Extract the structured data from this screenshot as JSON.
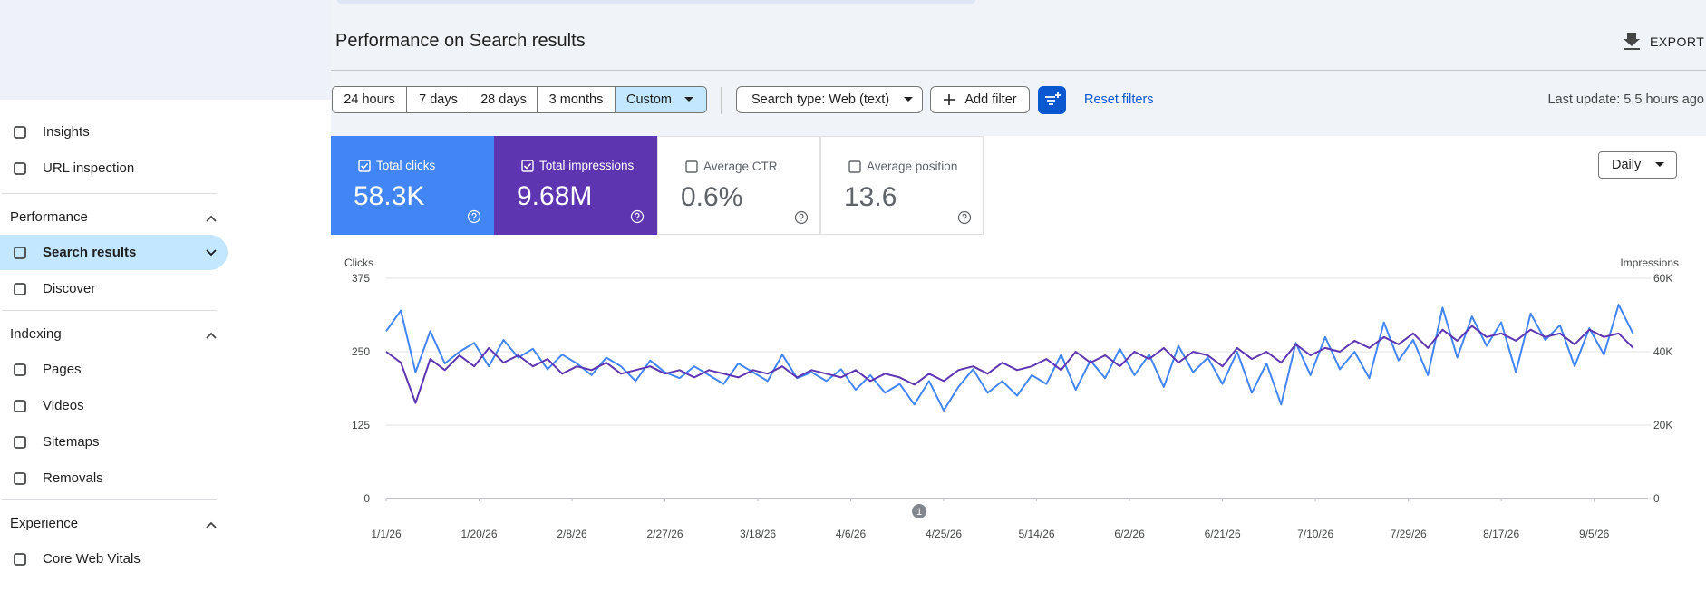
{
  "sidebar": {
    "top_items": [
      "Insights",
      "URL inspection"
    ],
    "sections": [
      {
        "title": "Performance",
        "items": [
          "Search results",
          "Discover"
        ]
      },
      {
        "title": "Indexing",
        "items": [
          "Pages",
          "Videos",
          "Sitemaps",
          "Removals"
        ]
      },
      {
        "title": "Experience",
        "items": [
          "Core Web Vitals"
        ]
      }
    ]
  },
  "header": {
    "title": "Performance on Search results",
    "export": "EXPORT"
  },
  "filters": {
    "date_ranges": [
      "24 hours",
      "7 days",
      "28 days",
      "3 months",
      "Custom"
    ],
    "search_type": "Search type: Web (text)",
    "add_filter": "Add filter",
    "reset": "Reset filters",
    "last_update": "Last update: 5.5 hours ago"
  },
  "metrics": [
    {
      "label": "Total clicks",
      "value": "58.3K",
      "checked": true,
      "color": "#4285f4"
    },
    {
      "label": "Total impressions",
      "value": "9.68M",
      "checked": true,
      "color": "#5e35b1"
    },
    {
      "label": "Average CTR",
      "value": "0.6%",
      "checked": false,
      "color": "#ffffff"
    },
    {
      "label": "Average position",
      "value": "13.6",
      "checked": false,
      "color": "#ffffff"
    }
  ],
  "granularity": "Daily",
  "chart_data": {
    "type": "line",
    "y_label": "Clicks",
    "y2_label": "Impressions",
    "x": [
      0,
      3,
      6,
      9,
      12,
      15,
      18,
      21,
      24,
      27,
      30,
      33,
      36,
      39,
      42,
      45,
      48,
      51,
      54,
      57,
      60,
      63,
      66,
      69,
      72,
      75,
      78,
      81,
      84,
      87,
      90,
      93,
      96,
      99,
      102,
      105,
      108,
      111,
      114,
      117,
      120,
      123,
      126,
      129,
      132,
      135,
      138,
      141,
      144,
      147,
      150,
      153,
      156,
      159,
      162,
      165,
      168,
      171,
      174,
      177,
      180,
      183,
      186,
      189,
      192,
      195,
      198,
      201,
      204,
      207,
      210,
      213,
      216,
      219,
      222,
      225,
      228,
      231,
      234,
      237,
      240,
      243,
      246,
      249,
      252,
      255
    ],
    "xlim": [
      0,
      258
    ],
    "xticks": [
      {
        "value": 0,
        "label": "1/1/26"
      },
      {
        "value": 19,
        "label": "1/20/26"
      },
      {
        "value": 38,
        "label": "2/8/26"
      },
      {
        "value": 57,
        "label": "2/27/26"
      },
      {
        "value": 76,
        "label": "3/18/26"
      },
      {
        "value": 95,
        "label": "4/6/26"
      },
      {
        "value": 114,
        "label": "4/25/26"
      },
      {
        "value": 133,
        "label": "5/14/26"
      },
      {
        "value": 152,
        "label": "6/2/26"
      },
      {
        "value": 171,
        "label": "6/21/26"
      },
      {
        "value": 190,
        "label": "7/10/26"
      },
      {
        "value": 209,
        "label": "7/29/26"
      },
      {
        "value": 228,
        "label": "8/17/26"
      },
      {
        "value": 247,
        "label": "9/5/26"
      }
    ],
    "ylim": [
      0,
      375
    ],
    "yticks": [
      0,
      125,
      250,
      375
    ],
    "y2lim": [
      0,
      60000
    ],
    "y2ticks": [
      0,
      {
        "value": 20000,
        "label": "20K"
      },
      {
        "value": 40000,
        "label": "40K"
      },
      {
        "value": 60000,
        "label": "60K"
      }
    ],
    "grid": true,
    "series": [
      {
        "name": "Clicks",
        "color": "#4285f4",
        "values": [
          285,
          320,
          215,
          285,
          230,
          250,
          265,
          225,
          270,
          240,
          255,
          220,
          245,
          230,
          210,
          240,
          225,
          200,
          235,
          215,
          205,
          225,
          210,
          195,
          230,
          215,
          200,
          245,
          205,
          215,
          200,
          220,
          185,
          210,
          180,
          195,
          160,
          200,
          150,
          190,
          220,
          180,
          200,
          175,
          210,
          195,
          245,
          185,
          235,
          205,
          255,
          210,
          245,
          190,
          260,
          215,
          240,
          195,
          250,
          180,
          230,
          160,
          265,
          210,
          275,
          220,
          250,
          205,
          300,
          235,
          270,
          210,
          325,
          240,
          310,
          260,
          300,
          215,
          315,
          270,
          295,
          225,
          290,
          245,
          330,
          280
        ]
      },
      {
        "name": "Impressions",
        "color": "#5e35b1",
        "axis": "y2",
        "values": [
          40000,
          37000,
          26000,
          38000,
          35000,
          39000,
          36000,
          41000,
          37000,
          39000,
          36000,
          38000,
          34000,
          36000,
          35000,
          37000,
          34000,
          35000,
          36000,
          34000,
          35000,
          33000,
          35000,
          34000,
          33000,
          35000,
          34000,
          36000,
          33000,
          35000,
          34000,
          33000,
          35000,
          32000,
          34000,
          33000,
          31000,
          34000,
          32000,
          35000,
          36000,
          34000,
          37000,
          35000,
          36000,
          38000,
          35000,
          40000,
          37000,
          39000,
          36000,
          40000,
          38000,
          41000,
          37000,
          40000,
          39000,
          36000,
          41000,
          38000,
          40000,
          37000,
          42000,
          39000,
          41000,
          40000,
          43000,
          41000,
          44000,
          42000,
          45000,
          41000,
          46000,
          43000,
          47000,
          44000,
          45000,
          43000,
          46000,
          44000,
          45000,
          42000,
          46000,
          44000,
          45000,
          41000
        ]
      }
    ],
    "annotations": [
      {
        "x": 109,
        "label": "1"
      }
    ]
  }
}
